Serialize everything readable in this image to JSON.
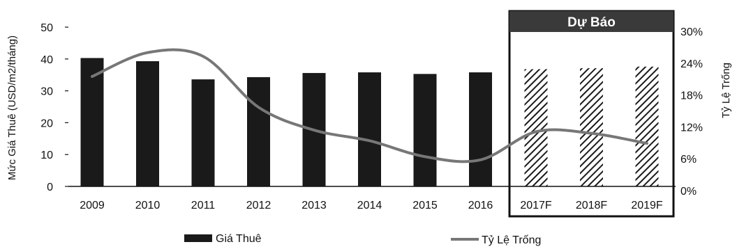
{
  "chart_data": {
    "type": "bar",
    "categories": [
      "2009",
      "2010",
      "2011",
      "2012",
      "2013",
      "2014",
      "2015",
      "2016",
      "2017F",
      "2018F",
      "2019F"
    ],
    "series": [
      {
        "name": "Giá Thuê",
        "type": "bar",
        "axis": "left",
        "values": [
          40.3,
          39.3,
          33.6,
          34.3,
          35.6,
          35.8,
          35.3,
          35.8,
          36.8,
          37.1,
          37.6
        ],
        "color": "#1a1a1a"
      },
      {
        "name": "Tỷ Lệ Trống",
        "type": "line",
        "axis": "right",
        "values": [
          20.7,
          25.2,
          24.5,
          14.9,
          10.6,
          8.6,
          5.6,
          5.0,
          10.3,
          10.0,
          8.1
        ],
        "color": "#777777"
      }
    ],
    "ylabel": "Mức Giá Thuê (USD/m2/tháng)",
    "y2label": "Tỷ Lệ Trống",
    "ylim": [
      0,
      50
    ],
    "y2lim": [
      0,
      30
    ],
    "yticks": [
      "0",
      "10",
      "20",
      "30",
      "40",
      "50"
    ],
    "y2ticks": [
      "0%",
      "6%",
      "12%",
      "18%",
      "24%",
      "30%"
    ],
    "forecast": {
      "label": "Dự Báo",
      "categories": [
        "2017F",
        "2018F",
        "2019F"
      ],
      "pattern": "diagonal-hatch"
    },
    "legend": {
      "position": "bottom"
    },
    "grid": false
  }
}
